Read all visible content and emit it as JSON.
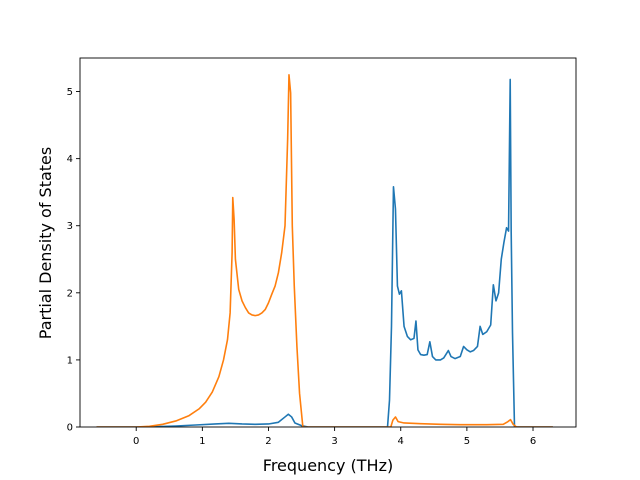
{
  "chart_data": {
    "type": "line",
    "title": "",
    "xlabel": "Frequency (THz)",
    "ylabel": "Partial Density of States",
    "xlim": [
      -0.85,
      6.65
    ],
    "ylim": [
      0,
      5.5
    ],
    "xticks": [
      0,
      1,
      2,
      3,
      4,
      5,
      6
    ],
    "yticks": [
      0,
      1,
      2,
      3,
      4,
      5
    ],
    "grid": false,
    "legend": "none",
    "series": [
      {
        "color": "#1f77b4",
        "points": [
          [
            -0.6,
            0
          ],
          [
            0.0,
            0.0
          ],
          [
            0.3,
            0.005
          ],
          [
            0.6,
            0.015
          ],
          [
            0.9,
            0.03
          ],
          [
            1.2,
            0.045
          ],
          [
            1.4,
            0.055
          ],
          [
            1.6,
            0.045
          ],
          [
            1.8,
            0.04
          ],
          [
            2.0,
            0.045
          ],
          [
            2.15,
            0.07
          ],
          [
            2.25,
            0.15
          ],
          [
            2.3,
            0.19
          ],
          [
            2.35,
            0.15
          ],
          [
            2.4,
            0.06
          ],
          [
            2.5,
            0.02
          ],
          [
            2.6,
            0.0
          ],
          [
            3.8,
            0.0
          ],
          [
            3.83,
            0.4
          ],
          [
            3.86,
            1.5
          ],
          [
            3.89,
            3.58
          ],
          [
            3.92,
            3.25
          ],
          [
            3.95,
            2.1
          ],
          [
            3.98,
            1.98
          ],
          [
            4.01,
            2.03
          ],
          [
            4.05,
            1.5
          ],
          [
            4.1,
            1.35
          ],
          [
            4.15,
            1.3
          ],
          [
            4.2,
            1.32
          ],
          [
            4.23,
            1.58
          ],
          [
            4.26,
            1.15
          ],
          [
            4.3,
            1.08
          ],
          [
            4.35,
            1.07
          ],
          [
            4.4,
            1.08
          ],
          [
            4.44,
            1.27
          ],
          [
            4.48,
            1.05
          ],
          [
            4.53,
            1.0
          ],
          [
            4.6,
            1.0
          ],
          [
            4.65,
            1.03
          ],
          [
            4.72,
            1.14
          ],
          [
            4.76,
            1.05
          ],
          [
            4.82,
            1.02
          ],
          [
            4.9,
            1.05
          ],
          [
            4.95,
            1.2
          ],
          [
            5.0,
            1.15
          ],
          [
            5.05,
            1.12
          ],
          [
            5.1,
            1.14
          ],
          [
            5.16,
            1.2
          ],
          [
            5.2,
            1.5
          ],
          [
            5.24,
            1.38
          ],
          [
            5.3,
            1.42
          ],
          [
            5.36,
            1.52
          ],
          [
            5.4,
            2.12
          ],
          [
            5.44,
            1.88
          ],
          [
            5.48,
            2.0
          ],
          [
            5.52,
            2.5
          ],
          [
            5.56,
            2.75
          ],
          [
            5.6,
            2.97
          ],
          [
            5.63,
            2.92
          ],
          [
            5.655,
            5.18
          ],
          [
            5.67,
            2.9
          ],
          [
            5.69,
            1.4
          ],
          [
            5.72,
            0.0
          ],
          [
            6.3,
            0.0
          ]
        ]
      },
      {
        "color": "#ff7f0e",
        "points": [
          [
            -0.6,
            0
          ],
          [
            0.0,
            0.0
          ],
          [
            0.2,
            0.01
          ],
          [
            0.4,
            0.04
          ],
          [
            0.6,
            0.09
          ],
          [
            0.8,
            0.17
          ],
          [
            0.95,
            0.27
          ],
          [
            1.05,
            0.37
          ],
          [
            1.15,
            0.52
          ],
          [
            1.25,
            0.75
          ],
          [
            1.32,
            1.0
          ],
          [
            1.38,
            1.3
          ],
          [
            1.42,
            1.7
          ],
          [
            1.45,
            2.6
          ],
          [
            1.46,
            3.42
          ],
          [
            1.48,
            3.1
          ],
          [
            1.5,
            2.5
          ],
          [
            1.55,
            2.05
          ],
          [
            1.6,
            1.88
          ],
          [
            1.65,
            1.78
          ],
          [
            1.7,
            1.7
          ],
          [
            1.75,
            1.67
          ],
          [
            1.8,
            1.66
          ],
          [
            1.85,
            1.67
          ],
          [
            1.9,
            1.7
          ],
          [
            1.95,
            1.75
          ],
          [
            2.0,
            1.85
          ],
          [
            2.05,
            1.98
          ],
          [
            2.1,
            2.1
          ],
          [
            2.15,
            2.3
          ],
          [
            2.2,
            2.6
          ],
          [
            2.25,
            3.0
          ],
          [
            2.29,
            4.3
          ],
          [
            2.31,
            5.25
          ],
          [
            2.335,
            4.98
          ],
          [
            2.36,
            3.0
          ],
          [
            2.39,
            2.1
          ],
          [
            2.43,
            1.2
          ],
          [
            2.47,
            0.5
          ],
          [
            2.52,
            0.0
          ],
          [
            3.85,
            0.0
          ],
          [
            3.88,
            0.1
          ],
          [
            3.92,
            0.15
          ],
          [
            3.96,
            0.08
          ],
          [
            4.05,
            0.06
          ],
          [
            4.3,
            0.05
          ],
          [
            4.6,
            0.04
          ],
          [
            4.9,
            0.035
          ],
          [
            5.3,
            0.035
          ],
          [
            5.55,
            0.04
          ],
          [
            5.62,
            0.08
          ],
          [
            5.66,
            0.11
          ],
          [
            5.7,
            0.04
          ],
          [
            5.75,
            0.0
          ],
          [
            6.3,
            0.0
          ]
        ]
      }
    ]
  }
}
